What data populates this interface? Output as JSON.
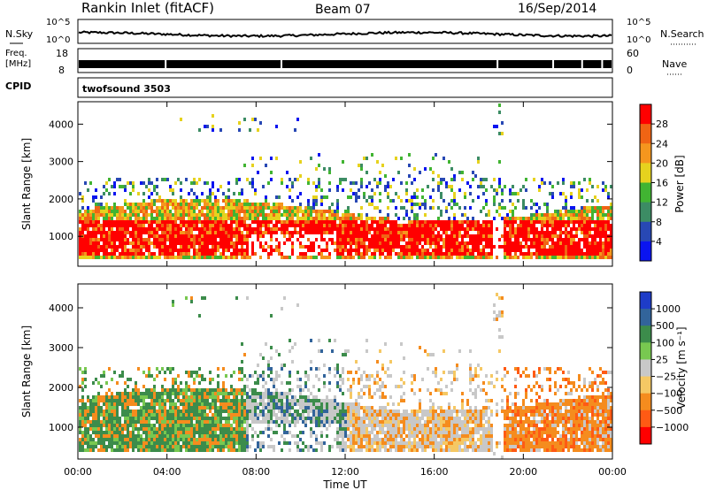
{
  "header": {
    "station": "Rankin Inlet (fitACF)",
    "beam": "Beam 07",
    "date": "16/Sep/2014"
  },
  "strips": {
    "nsky": {
      "label": "N.Sky",
      "ticks": [
        "10^5",
        "10^0"
      ],
      "right_label": "N.Search",
      "right_ticks": [
        "10^5",
        "10^0"
      ]
    },
    "freq": {
      "label_line1": "Freq.",
      "label_line2": "[MHz]",
      "ticks": [
        "18",
        "8"
      ],
      "right_label": "Nave",
      "right_ticks": [
        "60",
        "0"
      ]
    },
    "cpid": {
      "label": "CPID",
      "program": "twofsound 3503"
    }
  },
  "x_axis": {
    "label": "Time UT",
    "ticks": [
      "00:00",
      "04:00",
      "08:00",
      "12:00",
      "16:00",
      "20:00",
      "00:00"
    ]
  },
  "colors": {
    "power": [
      "#0a14f0",
      "#2848b4",
      "#3c8c64",
      "#41b432",
      "#e6d21e",
      "#f5961e",
      "#f06414",
      "#ff0000"
    ],
    "velocity": [
      "#ff0000",
      "#ff5a14",
      "#f58c1e",
      "#f5c864",
      "#c8c8c8",
      "#78c850",
      "#3c8c4b",
      "#32649b",
      "#1e3cc8"
    ]
  },
  "chart_data": [
    {
      "type": "heatmap",
      "quantity": "Power",
      "ylabel": "Slant Range [km]",
      "yticks": [
        1000,
        2000,
        3000,
        4000
      ],
      "ylim": [
        200,
        4600
      ],
      "xlim_hours": [
        0,
        24
      ],
      "colorbar": {
        "label": "Power [dB]",
        "ticks": [
          "4",
          "8",
          "12",
          "16",
          "20",
          "24",
          "28"
        ],
        "range": [
          0,
          32
        ]
      },
      "description_regions": [
        {
          "t0": 0,
          "t1": 7.5,
          "r0": 500,
          "r1": 1800,
          "level": "high"
        },
        {
          "t0": 12,
          "t1": 18.5,
          "r0": 800,
          "r1": 1800,
          "level": "high"
        },
        {
          "t0": 19,
          "t1": 24,
          "r0": 500,
          "r1": 1600,
          "level": "high"
        }
      ]
    },
    {
      "type": "heatmap",
      "quantity": "Velocity",
      "ylabel": "Slant Range [km]",
      "yticks": [
        1000,
        2000,
        3000,
        4000
      ],
      "ylim": [
        200,
        4600
      ],
      "xlim_hours": [
        0,
        24
      ],
      "colorbar": {
        "label": "Velocity [m s⁻¹]",
        "ticks": [
          "1000",
          "500",
          "100",
          "25",
          "−25",
          "−100",
          "−500",
          "−1000"
        ]
      }
    }
  ]
}
